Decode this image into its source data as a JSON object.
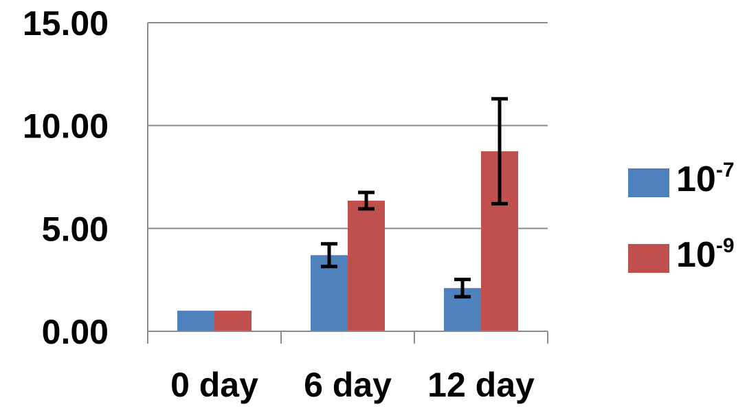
{
  "chart_data": {
    "type": "bar",
    "categories": [
      "0 day",
      "6 day",
      "12 day"
    ],
    "series": [
      {
        "name": "10-7",
        "base": "10",
        "exponent": "-7",
        "color": "#4f81bd",
        "values": [
          1.0,
          3.7,
          2.1
        ],
        "errors": [
          0,
          0.55,
          0.42
        ]
      },
      {
        "name": "10-9",
        "base": "10",
        "exponent": "-9",
        "color": "#c0504d",
        "values": [
          1.0,
          6.35,
          8.75
        ],
        "errors": [
          0,
          0.4,
          2.55
        ]
      }
    ],
    "y_ticks": [
      "0.00",
      "5.00",
      "10.00",
      "15.00"
    ],
    "ylim": [
      0,
      15
    ],
    "grid": true,
    "legend_position": "right",
    "title": "",
    "xlabel": "",
    "ylabel": ""
  }
}
